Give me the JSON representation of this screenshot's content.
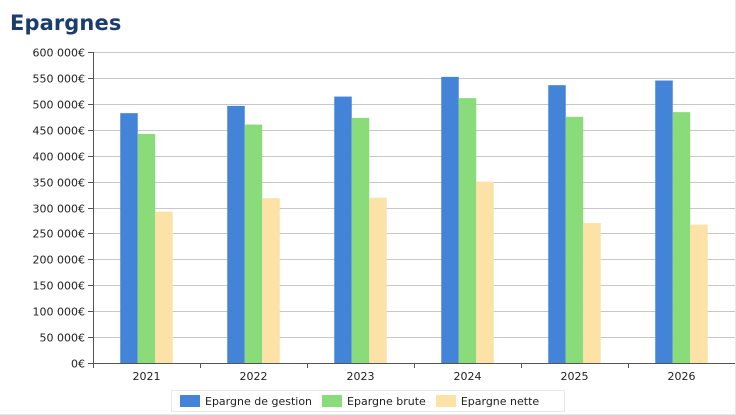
{
  "title": "Epargnes",
  "chart_data": {
    "type": "bar",
    "categories": [
      "2021",
      "2022",
      "2023",
      "2024",
      "2025",
      "2026"
    ],
    "series": [
      {
        "name": "Epargne de gestion",
        "color": "#4384d8",
        "values": [
          482000,
          496000,
          514000,
          552000,
          536000,
          545000
        ]
      },
      {
        "name": "Epargne brute",
        "color": "#8adc7a",
        "values": [
          442000,
          460000,
          473000,
          511000,
          475000,
          484000
        ]
      },
      {
        "name": "Epargne nette",
        "color": "#fde2a7",
        "values": [
          292000,
          318000,
          319000,
          350000,
          270000,
          267000
        ]
      }
    ],
    "ylim": [
      0,
      600000
    ],
    "yticks": [
      "0€",
      "50 000€",
      "100 000€",
      "150 000€",
      "200 000€",
      "250 000€",
      "300 000€",
      "350 000€",
      "400 000€",
      "450 000€",
      "500 000€",
      "550 000€",
      "600 000€"
    ],
    "grid": true,
    "legend": "bottom-center"
  }
}
